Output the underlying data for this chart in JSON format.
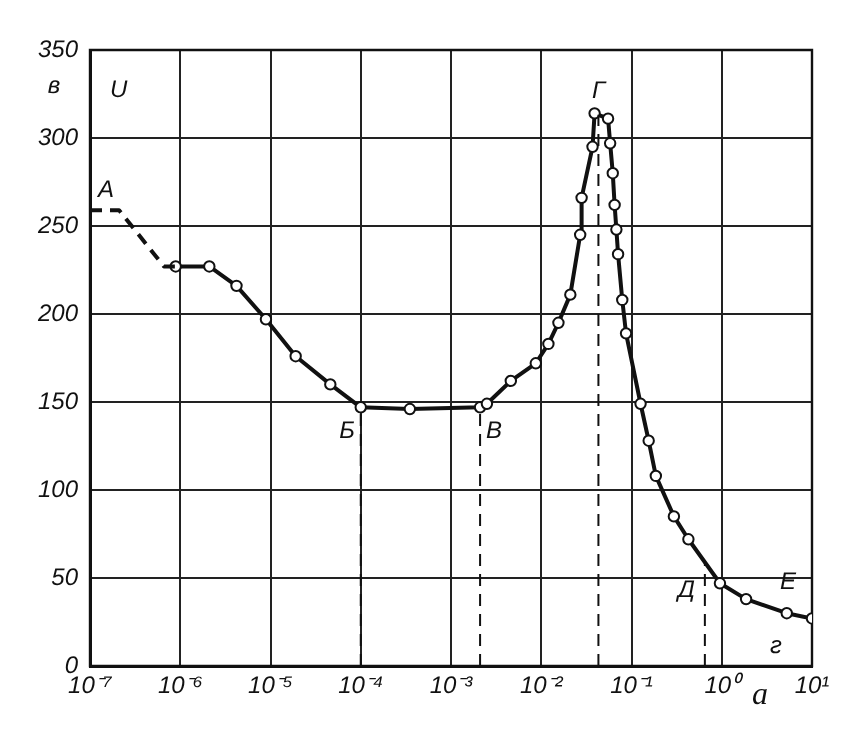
{
  "chart_data": {
    "type": "line",
    "ylabel": "U",
    "xlabel": "a",
    "log": "x",
    "grid": true,
    "legend": false,
    "xlim": [
      1e-07,
      10
    ],
    "xticks": [
      {
        "value": 1e-07,
        "label": "10⁻⁷"
      },
      {
        "value": 1e-06,
        "label": "10⁻⁶"
      },
      {
        "value": 1e-05,
        "label": "10⁻⁵"
      },
      {
        "value": 0.0001,
        "label": "10⁻⁴"
      },
      {
        "value": 0.001,
        "label": "10⁻³"
      },
      {
        "value": 0.01,
        "label": "10⁻²"
      },
      {
        "value": 0.1,
        "label": "10⁻¹"
      },
      {
        "value": 1,
        "label": "10⁰"
      },
      {
        "value": 10,
        "label": "10¹"
      }
    ],
    "ylim": [
      0,
      350
    ],
    "yticks": [
      0,
      50,
      100,
      150,
      200,
      250,
      300,
      350
    ],
    "series": [
      {
        "color": "#111111",
        "line_style": "dashed",
        "marker": "none",
        "x": [
          1e-07,
          2.1e-07,
          6.6e-07,
          8.9e-07
        ],
        "values": [
          259,
          259,
          227,
          227
        ]
      },
      {
        "color": "#111111",
        "line_style": "solid",
        "marker": "circle",
        "x": [
          8.9e-07,
          2.1e-06,
          4.2e-06,
          8.9e-06,
          1.9e-05,
          4.6e-05,
          0.0001,
          0.00035,
          0.0021,
          0.0025,
          0.0046,
          0.0087,
          0.012,
          0.0155,
          0.021,
          0.027,
          0.028,
          0.037,
          0.039,
          0.055,
          0.058,
          0.062,
          0.065,
          0.068,
          0.071,
          0.079,
          0.087,
          0.126,
          0.155,
          0.186,
          0.295,
          0.427,
          0.955,
          1.86,
          5.25,
          10
        ],
        "values": [
          227,
          227,
          216,
          197,
          176,
          160,
          147,
          146,
          147,
          149,
          162,
          172,
          183,
          195,
          211,
          245,
          266,
          295,
          314,
          311,
          297,
          280,
          262,
          248,
          234,
          208,
          189,
          149,
          128,
          108,
          85,
          72,
          47,
          38,
          30,
          27
        ]
      }
    ],
    "ref_lines": [
      {
        "axis": "x",
        "value": 0.0001,
        "label": "Б",
        "line_style": "dashed"
      },
      {
        "axis": "x",
        "value": 0.0021,
        "label": "В",
        "line_style": "dashed"
      },
      {
        "axis": "x",
        "value": 0.043,
        "label": "Г",
        "line_style": "dashed"
      },
      {
        "axis": "x",
        "value": 0.65,
        "label": "Д",
        "line_style": "dashed"
      }
    ],
    "annotations": [
      "A",
      "Е",
      "в",
      "г"
    ]
  }
}
